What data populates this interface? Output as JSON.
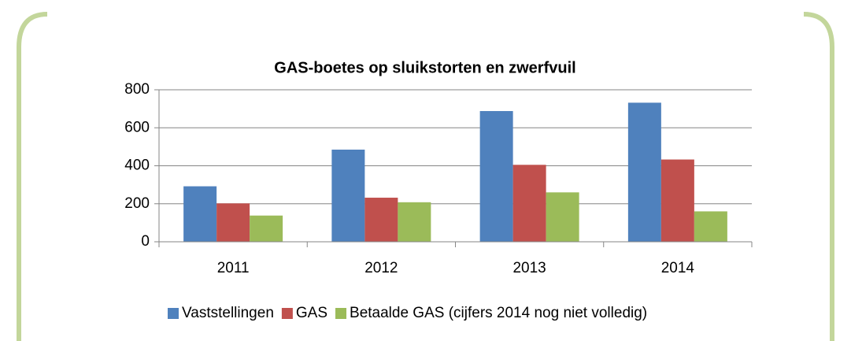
{
  "chart_data": {
    "type": "bar",
    "title": "GAS-boetes op sluikstorten en zwerfvuil",
    "categories": [
      "2011",
      "2012",
      "2013",
      "2014"
    ],
    "series": [
      {
        "name": "Vaststellingen",
        "color": "#4f81bd",
        "values": [
          292,
          485,
          688,
          732
        ]
      },
      {
        "name": "GAS",
        "color": "#c0504d",
        "values": [
          202,
          232,
          405,
          433
        ]
      },
      {
        "name": "Betaalde GAS (cijfers 2014 nog niet volledig)",
        "color": "#9bbb59",
        "values": [
          138,
          208,
          260,
          160
        ]
      }
    ],
    "ylim": [
      0,
      800
    ],
    "yticks": [
      0,
      200,
      400,
      600,
      800
    ],
    "grid": true
  }
}
